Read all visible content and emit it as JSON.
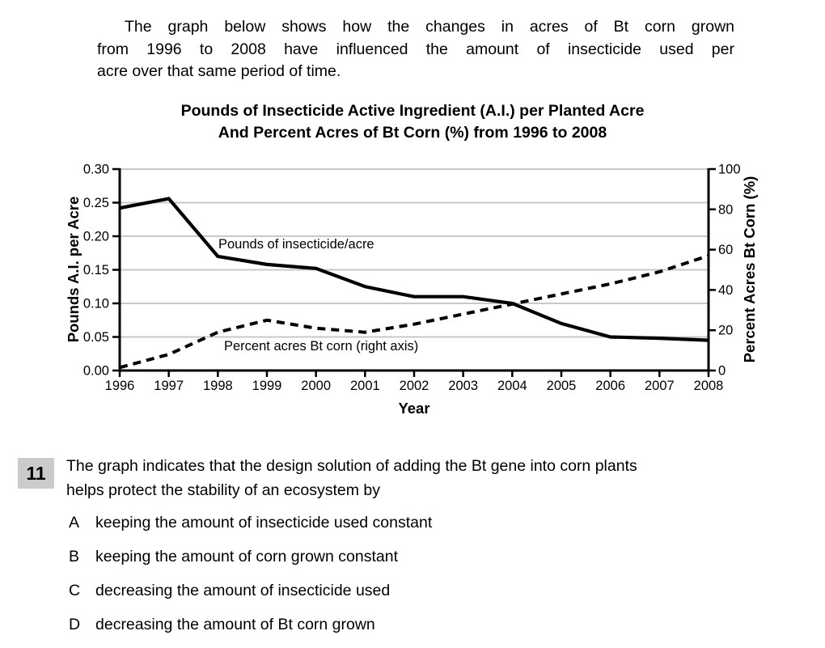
{
  "intro": {
    "lines": [
      "The graph below shows how the changes in acres of Bt corn grown",
      "from 1996 to 2008 have influenced the amount of insecticide used per",
      "acre over that same period of time."
    ]
  },
  "chart_data": {
    "type": "line",
    "title_lines": [
      "Pounds of Insecticide Active Ingredient (A.I.) per Planted Acre",
      "And Percent Acres of Bt Corn (%) from 1996 to 2008"
    ],
    "categories": [
      1996,
      1997,
      1998,
      1999,
      2000,
      2001,
      2002,
      2003,
      2004,
      2005,
      2006,
      2007,
      2008
    ],
    "series": [
      {
        "name": "Pounds of insecticide/acre",
        "axis": "left",
        "style": "solid",
        "values": [
          0.242,
          0.256,
          0.17,
          0.158,
          0.152,
          0.125,
          0.11,
          0.11,
          0.1,
          0.07,
          0.05,
          0.048,
          0.045
        ]
      },
      {
        "name": "Percent acres Bt corn (right axis)",
        "axis": "right",
        "style": "dashed",
        "values": [
          1.5,
          8,
          19,
          25,
          21,
          19,
          23,
          28,
          33,
          38,
          43,
          49,
          57
        ]
      }
    ],
    "xlabel": "Year",
    "ylabel": "Pounds A.I. per Acre",
    "y2label": "Percent Acres Bt Corn (%)",
    "ylim": [
      0,
      0.3
    ],
    "y2lim": [
      0,
      100
    ],
    "left_ticks": [
      "0.00",
      "0.05",
      "0.10",
      "0.15",
      "0.20",
      "0.25",
      "0.30"
    ],
    "right_ticks": [
      "0",
      "20",
      "40",
      "60",
      "80",
      "100"
    ],
    "grid": "horizontal",
    "legend_position": "inline-labels"
  },
  "question": {
    "number": "11",
    "lines": [
      "The graph indicates that the design solution of adding the Bt gene into corn plants",
      "helps protect the stability of an ecosystem by"
    ],
    "options": [
      {
        "letter": "A",
        "text": "keeping the amount of insecticide used constant"
      },
      {
        "letter": "B",
        "text": "keeping the amount of corn grown constant"
      },
      {
        "letter": "C",
        "text": "decreasing the amount of insecticide used"
      },
      {
        "letter": "D",
        "text": "decreasing the amount of Bt corn grown"
      }
    ]
  },
  "colors": {
    "text": "#000000",
    "grid": "#c9c9c9",
    "axis": "#000000",
    "number_box_bg": "#cbcbcb"
  }
}
